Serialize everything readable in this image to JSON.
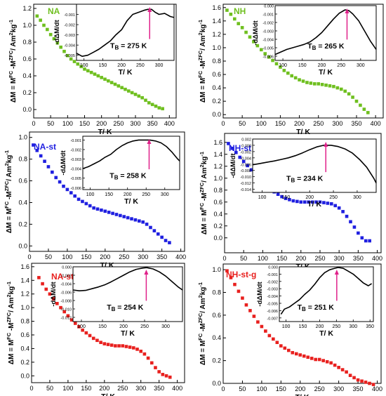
{
  "chart_data": [
    {
      "type": "scatter",
      "title": "NA",
      "xlabel": "T/ K",
      "ylabel": "ΔM = M^FC -M^ZFC/ Am²kg⁻¹",
      "xlim": [
        0,
        420
      ],
      "ylim": [
        -0.1,
        1.25
      ],
      "xticks": [
        "0",
        "50",
        "100",
        "150",
        "200",
        "250",
        "300",
        "350",
        "400"
      ],
      "yticks": [
        "0.0",
        "0.2",
        "0.4",
        "0.6",
        "0.8",
        "1.0",
        "1.2"
      ],
      "color": "#6fbf1f",
      "x": [
        10,
        20,
        30,
        40,
        50,
        60,
        70,
        80,
        90,
        100,
        110,
        120,
        130,
        140,
        150,
        160,
        170,
        180,
        190,
        200,
        210,
        220,
        230,
        240,
        250,
        260,
        270,
        280,
        290,
        300,
        310,
        320,
        330,
        340,
        350,
        360,
        370,
        380
      ],
      "y": [
        1.11,
        1.06,
        1.0,
        0.95,
        0.89,
        0.84,
        0.79,
        0.74,
        0.69,
        0.64,
        0.6,
        0.57,
        0.54,
        0.51,
        0.48,
        0.46,
        0.44,
        0.42,
        0.4,
        0.38,
        0.36,
        0.34,
        0.32,
        0.3,
        0.28,
        0.26,
        0.24,
        0.22,
        0.2,
        0.18,
        0.16,
        0.14,
        0.11,
        0.08,
        0.06,
        0.04,
        0.02,
        0.01
      ],
      "inset": {
        "ylabel": "-dΔM/dt",
        "annotation": "T_B = 275 K",
        "tb_value": 275,
        "arrow_color": "#e0218a",
        "xlim": [
          80,
          340
        ],
        "ylim": [
          -0.0055,
          0.0
        ],
        "xticks": [
          "100",
          "150",
          "200",
          "250",
          "300"
        ],
        "yticks": [
          "-0.001",
          "-0.002",
          "-0.003",
          "-0.004",
          "-0.005"
        ],
        "x": [
          80,
          95,
          110,
          125,
          140,
          155,
          170,
          185,
          200,
          215,
          230,
          245,
          260,
          270,
          280,
          290,
          300,
          315,
          330,
          340
        ],
        "y": [
          -0.0048,
          -0.0051,
          -0.005,
          -0.0047,
          -0.0044,
          -0.004,
          -0.0036,
          -0.003,
          -0.0025,
          -0.0016,
          -0.001,
          -0.0008,
          -0.0006,
          -0.0005,
          -0.0005,
          -0.0008,
          -0.001,
          -0.0009,
          -0.0012,
          -0.0013
        ]
      }
    },
    {
      "type": "scatter",
      "title": "NH",
      "xlabel": "T/ K",
      "ylabel": "ΔM = M^FC -M^ZFC/ Am²kg⁻¹",
      "xlim": [
        0,
        420
      ],
      "ylim": [
        -0.05,
        1.65
      ],
      "xticks": [
        "0",
        "50",
        "100",
        "150",
        "200",
        "250",
        "300",
        "350",
        "400"
      ],
      "yticks": [
        "0.0",
        "0.2",
        "0.4",
        "0.6",
        "0.8",
        "1.0",
        "1.2",
        "1.4",
        "1.6"
      ],
      "color": "#6fbf1f",
      "x": [
        10,
        20,
        30,
        40,
        50,
        60,
        70,
        80,
        90,
        100,
        110,
        120,
        130,
        140,
        150,
        160,
        170,
        180,
        190,
        200,
        210,
        220,
        230,
        240,
        250,
        260,
        270,
        280,
        290,
        300,
        310,
        320,
        330,
        340,
        350,
        360,
        370,
        380
      ],
      "y": [
        1.56,
        1.5,
        1.43,
        1.36,
        1.3,
        1.23,
        1.16,
        1.09,
        1.03,
        0.97,
        0.91,
        0.86,
        0.81,
        0.76,
        0.71,
        0.66,
        0.62,
        0.58,
        0.55,
        0.52,
        0.5,
        0.48,
        0.47,
        0.46,
        0.46,
        0.45,
        0.44,
        0.43,
        0.42,
        0.4,
        0.38,
        0.35,
        0.31,
        0.26,
        0.2,
        0.14,
        0.08,
        0.03
      ],
      "inset": {
        "ylabel": "-dΔM/dt",
        "annotation": "T_B = 265 K",
        "tb_value": 265,
        "arrow_color": "#e0218a",
        "xlim": [
          80,
          340
        ],
        "ylim": [
          -0.0065,
          0.0
        ],
        "xticks": [
          "100",
          "150",
          "200",
          "250",
          "300"
        ],
        "yticks": [
          "0.000",
          "-0.001",
          "-0.002",
          "-0.003",
          "-0.004",
          "-0.005",
          "-0.006"
        ],
        "x": [
          80,
          95,
          110,
          125,
          140,
          155,
          170,
          185,
          200,
          215,
          230,
          245,
          260,
          270,
          280,
          295,
          310,
          325,
          340
        ],
        "y": [
          -0.0058,
          -0.0055,
          -0.0052,
          -0.005,
          -0.0048,
          -0.0046,
          -0.0043,
          -0.0038,
          -0.0032,
          -0.0024,
          -0.0016,
          -0.0009,
          -0.0005,
          -0.0006,
          -0.001,
          -0.0018,
          -0.003,
          -0.0042,
          -0.0052
        ]
      }
    },
    {
      "type": "scatter",
      "title": "NA-st",
      "xlabel": "T/ K",
      "ylabel": "ΔM = M^FC -M^ZFC/ Am²kg⁻¹",
      "xlim": [
        0,
        410
      ],
      "ylim": [
        -0.05,
        1.05
      ],
      "xticks": [
        "0",
        "50",
        "100",
        "150",
        "200",
        "250",
        "300",
        "350",
        "400"
      ],
      "yticks": [
        "0.0",
        "0.2",
        "0.4",
        "0.6",
        "0.8",
        "1.0"
      ],
      "color": "#1f1fe0",
      "x": [
        10,
        20,
        30,
        40,
        50,
        60,
        70,
        80,
        90,
        100,
        110,
        120,
        130,
        140,
        150,
        160,
        170,
        180,
        190,
        200,
        210,
        220,
        230,
        240,
        250,
        260,
        270,
        280,
        290,
        300,
        310,
        320,
        330,
        340,
        350,
        360,
        370
      ],
      "y": [
        0.93,
        0.88,
        0.83,
        0.78,
        0.73,
        0.68,
        0.63,
        0.59,
        0.55,
        0.52,
        0.49,
        0.46,
        0.43,
        0.41,
        0.39,
        0.37,
        0.35,
        0.34,
        0.33,
        0.32,
        0.31,
        0.3,
        0.29,
        0.28,
        0.27,
        0.26,
        0.25,
        0.24,
        0.23,
        0.22,
        0.2,
        0.17,
        0.14,
        0.11,
        0.08,
        0.05,
        0.03
      ],
      "inset": {
        "ylabel": "-dΔM/dt",
        "annotation": "T_B = 258 K",
        "tb_value": 258,
        "arrow_color": "#e0218a",
        "xlim": [
          80,
          340
        ],
        "ylim": [
          -0.0062,
          -0.0006
        ],
        "xticks": [
          "100",
          "150",
          "200",
          "250",
          "300"
        ],
        "yticks": [
          "-0.001",
          "-0.002",
          "-0.003",
          "-0.004",
          "-0.005",
          "-0.006"
        ],
        "x": [
          80,
          95,
          110,
          125,
          140,
          155,
          170,
          185,
          200,
          215,
          230,
          245,
          260,
          275,
          290,
          305,
          320,
          335,
          340
        ],
        "y": [
          -0.004,
          -0.0038,
          -0.0035,
          -0.0032,
          -0.0028,
          -0.0025,
          -0.002,
          -0.0016,
          -0.0013,
          -0.0011,
          -0.001,
          -0.001,
          -0.001,
          -0.0011,
          -0.0013,
          -0.0017,
          -0.0023,
          -0.003,
          -0.0032
        ]
      }
    },
    {
      "type": "scatter",
      "title": "NH-st",
      "xlabel": "T/ K",
      "ylabel": "ΔM = M^FC -M^ZFC/ Am²kg⁻¹",
      "xlim": [
        0,
        410
      ],
      "ylim": [
        -0.25,
        1.75
      ],
      "xticks": [
        "0",
        "50",
        "100",
        "150",
        "200",
        "250",
        "300",
        "350",
        "400"
      ],
      "yticks": [
        "0.0",
        "0.2",
        "0.4",
        "0.6",
        "0.8",
        "1.0",
        "1.2",
        "1.4",
        "1.6"
      ],
      "color": "#1f1fe0",
      "x": [
        10,
        20,
        30,
        40,
        50,
        60,
        70,
        80,
        90,
        100,
        110,
        120,
        130,
        140,
        150,
        160,
        170,
        180,
        190,
        200,
        210,
        220,
        230,
        240,
        250,
        260,
        270,
        280,
        290,
        300,
        310,
        320,
        330,
        340,
        350,
        360,
        370,
        380
      ],
      "y": [
        1.58,
        1.5,
        1.43,
        1.35,
        1.28,
        1.21,
        1.14,
        1.07,
        1.0,
        0.93,
        0.87,
        0.82,
        0.77,
        0.73,
        0.69,
        0.66,
        0.64,
        0.62,
        0.61,
        0.6,
        0.6,
        0.6,
        0.6,
        0.6,
        0.6,
        0.59,
        0.58,
        0.57,
        0.54,
        0.5,
        0.44,
        0.36,
        0.27,
        0.18,
        0.08,
        0.0,
        -0.05,
        -0.05
      ],
      "inset": {
        "ylabel": "-dΔM/dt",
        "annotation": "T_B = 234 K",
        "tb_value": 234,
        "arrow_color": "#e0218a",
        "xlim": [
          80,
          340
        ],
        "ylim": [
          -0.015,
          0.002
        ],
        "xticks": [
          "100",
          "150",
          "200",
          "250",
          "300"
        ],
        "yticks": [
          "0.002",
          "0.000",
          "-0.002",
          "-0.004",
          "-0.006",
          "-0.008",
          "-0.010",
          "-0.012",
          "-0.014"
        ],
        "x": [
          80,
          95,
          110,
          125,
          140,
          155,
          170,
          185,
          200,
          215,
          230,
          245,
          260,
          275,
          290,
          305,
          320,
          335,
          340
        ],
        "y": [
          -0.0062,
          -0.0058,
          -0.0054,
          -0.005,
          -0.0045,
          -0.004,
          -0.0033,
          -0.0024,
          -0.0014,
          -0.0005,
          0.0,
          0.0,
          -0.0004,
          -0.0012,
          -0.0025,
          -0.0045,
          -0.007,
          -0.0105,
          -0.012
        ]
      }
    },
    {
      "type": "scatter",
      "title": "NA-st-g",
      "xlabel": "T/ K",
      "ylabel": "ΔM = M^FC -M^ZFC/ Am²kg⁻¹",
      "xlim": [
        0,
        420
      ],
      "ylim": [
        -0.1,
        1.65
      ],
      "xticks": [
        "0",
        "50",
        "100",
        "150",
        "200",
        "250",
        "300",
        "350",
        "400"
      ],
      "yticks": [
        "0.0",
        "0.2",
        "0.4",
        "0.6",
        "0.8",
        "1.0",
        "1.2",
        "1.4",
        "1.6"
      ],
      "color": "#e8201e",
      "x": [
        20,
        30,
        40,
        50,
        60,
        70,
        80,
        90,
        100,
        110,
        120,
        130,
        140,
        150,
        160,
        170,
        180,
        190,
        200,
        210,
        220,
        230,
        240,
        250,
        260,
        270,
        280,
        290,
        300,
        310,
        320,
        330,
        340,
        350,
        360,
        370,
        380
      ],
      "y": [
        1.44,
        1.35,
        1.27,
        1.2,
        1.13,
        1.06,
        1.0,
        0.94,
        0.88,
        0.82,
        0.77,
        0.72,
        0.67,
        0.63,
        0.59,
        0.55,
        0.52,
        0.49,
        0.47,
        0.46,
        0.45,
        0.44,
        0.44,
        0.44,
        0.43,
        0.42,
        0.41,
        0.39,
        0.36,
        0.32,
        0.26,
        0.19,
        0.12,
        0.06,
        0.02,
        0.0,
        -0.02
      ],
      "inset": {
        "ylabel": "-dΔM/dt",
        "annotation": "T_B = 254 K",
        "tb_value": 254,
        "arrow_color": "#e0218a",
        "xlim": [
          80,
          340
        ],
        "ylim": [
          -0.013,
          0.0
        ],
        "xticks": [
          "100",
          "150",
          "200",
          "250",
          "300"
        ],
        "yticks": [
          "0.000",
          "-0.002",
          "-0.004",
          "-0.006",
          "-0.008",
          "-0.010",
          "-0.012"
        ],
        "x": [
          80,
          95,
          110,
          125,
          140,
          155,
          170,
          185,
          200,
          215,
          230,
          245,
          255,
          270,
          285,
          300,
          315,
          330,
          340
        ],
        "y": [
          -0.0055,
          -0.0057,
          -0.0056,
          -0.0052,
          -0.0048,
          -0.0043,
          -0.0036,
          -0.0028,
          -0.002,
          -0.0012,
          -0.0006,
          -0.0003,
          -0.0002,
          -0.0005,
          -0.0012,
          -0.0022,
          -0.0035,
          -0.0048,
          -0.0055
        ]
      }
    },
    {
      "type": "scatter",
      "title": "NH-st-g",
      "xlabel": "T/ K",
      "ylabel": "ΔM = M^FC -M^ZFC/ Am²kg⁻¹",
      "xlim": [
        0,
        410
      ],
      "ylim": [
        0.0,
        1.05
      ],
      "xticks": [
        "0",
        "50",
        "100",
        "150",
        "200",
        "250",
        "300",
        "350",
        "400"
      ],
      "yticks": [
        "0.0",
        "0.2",
        "0.4",
        "0.6",
        "0.8",
        "1.0"
      ],
      "color": "#e8201e",
      "x": [
        10,
        20,
        30,
        40,
        50,
        60,
        70,
        80,
        90,
        100,
        110,
        120,
        130,
        140,
        150,
        160,
        170,
        180,
        190,
        200,
        210,
        220,
        230,
        240,
        250,
        260,
        270,
        280,
        290,
        300,
        310,
        320,
        330,
        340,
        350,
        360,
        370,
        380,
        390
      ],
      "y": [
        0.99,
        0.93,
        0.87,
        0.81,
        0.75,
        0.69,
        0.64,
        0.59,
        0.54,
        0.5,
        0.46,
        0.42,
        0.39,
        0.36,
        0.33,
        0.31,
        0.29,
        0.27,
        0.26,
        0.25,
        0.24,
        0.23,
        0.22,
        0.21,
        0.21,
        0.2,
        0.19,
        0.18,
        0.16,
        0.14,
        0.12,
        0.1,
        0.07,
        0.05,
        0.03,
        0.02,
        0.01,
        0.0,
        -0.01
      ],
      "inset": {
        "ylabel": "-dΔM/dt",
        "annotation": "T_B = 251 K",
        "tb_value": 251,
        "arrow_color": "#e0218a",
        "xlim": [
          80,
          360
        ],
        "ylim": [
          -0.0075,
          0.0
        ],
        "xticks": [
          "100",
          "150",
          "200",
          "250",
          "300",
          "350"
        ],
        "yticks": [
          "0.000",
          "-0.001",
          "-0.002",
          "-0.003",
          "-0.004",
          "-0.005",
          "-0.006",
          "-0.007"
        ],
        "x": [
          85,
          95,
          110,
          125,
          140,
          155,
          170,
          185,
          200,
          215,
          230,
          245,
          255,
          270,
          285,
          300,
          315,
          330,
          345,
          355
        ],
        "y": [
          -0.0065,
          -0.0058,
          -0.0055,
          -0.005,
          -0.0045,
          -0.0038,
          -0.0032,
          -0.0024,
          -0.0015,
          -0.0008,
          -0.0004,
          -0.0002,
          -0.0001,
          -0.0002,
          -0.0006,
          -0.001,
          -0.0016,
          -0.0022,
          -0.0026,
          -0.0023
        ]
      }
    }
  ]
}
